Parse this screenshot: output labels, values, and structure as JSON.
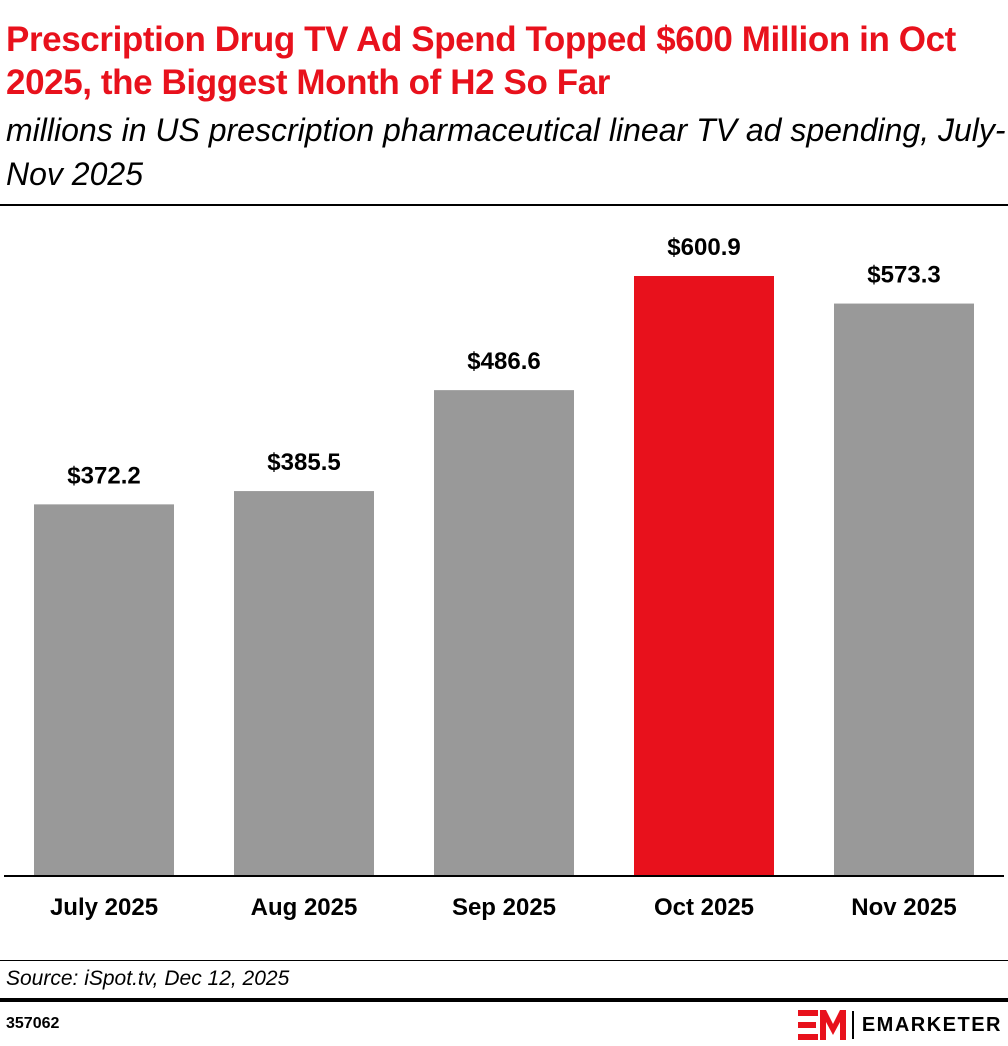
{
  "title": "Prescription Drug TV Ad Spend Topped $600 Million in Oct 2025, the Biggest Month of H2 So Far",
  "subtitle": "millions in US prescription pharmaceutical linear TV ad spending, July-Nov 2025",
  "source": "Source: iSpot.tv, Dec 12, 2025",
  "chart_id": "357062",
  "brand": {
    "name": "EMARKETER",
    "logo_icon": "em-logo-icon",
    "logo_color": "#e8111c"
  },
  "colors": {
    "accent": "#e8111c",
    "bar": "#999999",
    "text": "#000000"
  },
  "chart_data": {
    "type": "bar",
    "categories": [
      "July 2025",
      "Aug 2025",
      "Sep 2025",
      "Oct 2025",
      "Nov 2025"
    ],
    "values": [
      372.2,
      385.5,
      486.6,
      600.9,
      573.3
    ],
    "data_labels": [
      "$372.2",
      "$385.5",
      "$486.6",
      "$600.9",
      "$573.3"
    ],
    "highlight_index": 3,
    "ylim": [
      0,
      600.9
    ],
    "grid": false,
    "legend": "none"
  }
}
